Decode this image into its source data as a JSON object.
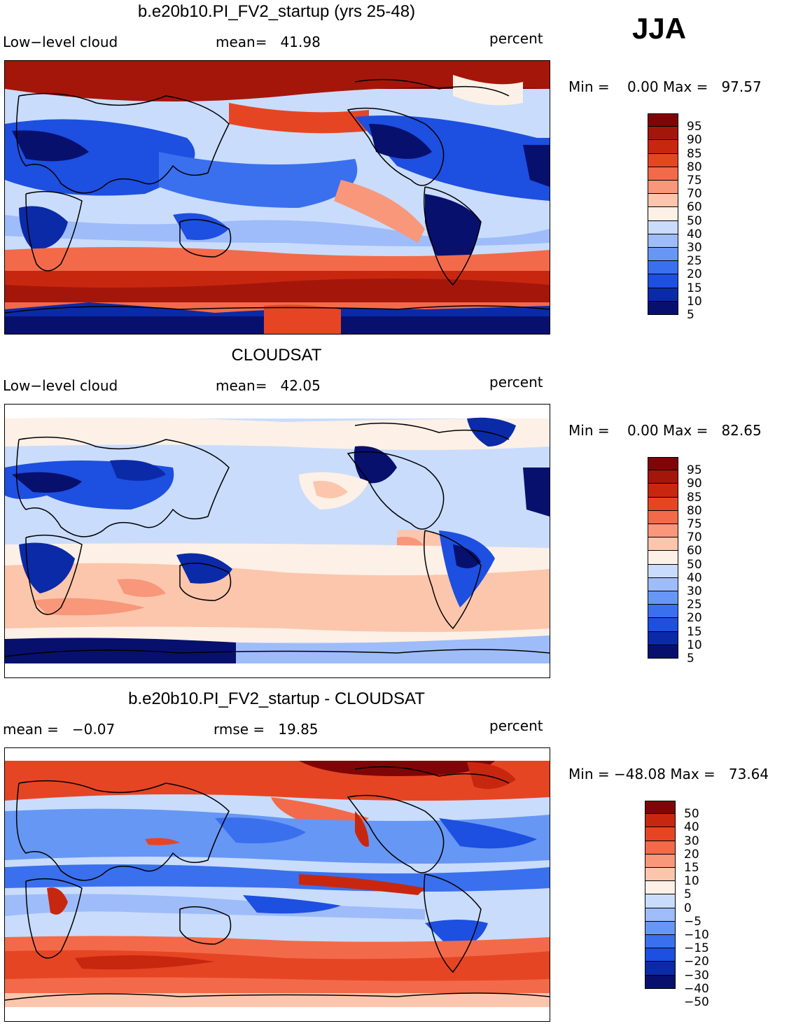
{
  "season": "JJA",
  "colors": {
    "full": [
      "#08106e",
      "#0a2aa8",
      "#1d4fe0",
      "#3a70ee",
      "#6797f4",
      "#9ebcf9",
      "#c9dcfc",
      "#fdf0e6",
      "#fcc6ac",
      "#f8977a",
      "#f26a4a",
      "#e64524",
      "#c8270f",
      "#a5160a",
      "#7f0606"
    ],
    "diff": [
      "#08106e",
      "#0a2aa8",
      "#1d4fe0",
      "#3a70ee",
      "#6797f4",
      "#9ebcf9",
      "#c9dcfc",
      "#fdf0e6",
      "#fcc6ac",
      "#f8977a",
      "#f26a4a",
      "#e64524",
      "#c8270f",
      "#7f0606"
    ]
  },
  "panels": [
    {
      "title": "b.e20b10.PI_FV2_startup (yrs 25-48)",
      "left_label": "Low−level cloud",
      "mid_label": "mean=   41.98",
      "right_label": "percent",
      "minmax": "Min =    0.00 Max =   97.57",
      "colorbar_labels": [
        "95",
        "90",
        "85",
        "80",
        "75",
        "70",
        "60",
        "50",
        "40",
        "30",
        "25",
        "20",
        "15",
        "10",
        "5"
      ],
      "colorbar_scheme": "full"
    },
    {
      "title": "CLOUDSAT",
      "left_label": "Low−level cloud",
      "mid_label": "mean=   42.05",
      "right_label": "percent",
      "minmax": "Min =    0.00 Max =   82.65",
      "colorbar_labels": [
        "95",
        "90",
        "85",
        "80",
        "75",
        "70",
        "60",
        "50",
        "40",
        "30",
        "25",
        "20",
        "15",
        "10",
        "5"
      ],
      "colorbar_scheme": "full"
    },
    {
      "title": "b.e20b10.PI_FV2_startup - CLOUDSAT",
      "left_label": "mean =   −0.07",
      "mid_label": "rmse =   19.85",
      "right_label": "percent",
      "minmax": "Min = −48.08 Max =   73.64",
      "colorbar_labels": [
        "50",
        "40",
        "30",
        "20",
        "15",
        "10",
        "5",
        "0",
        "−5",
        "−10",
        "−15",
        "−20",
        "−30",
        "−40",
        "−50"
      ],
      "colorbar_scheme": "diff"
    }
  ]
}
